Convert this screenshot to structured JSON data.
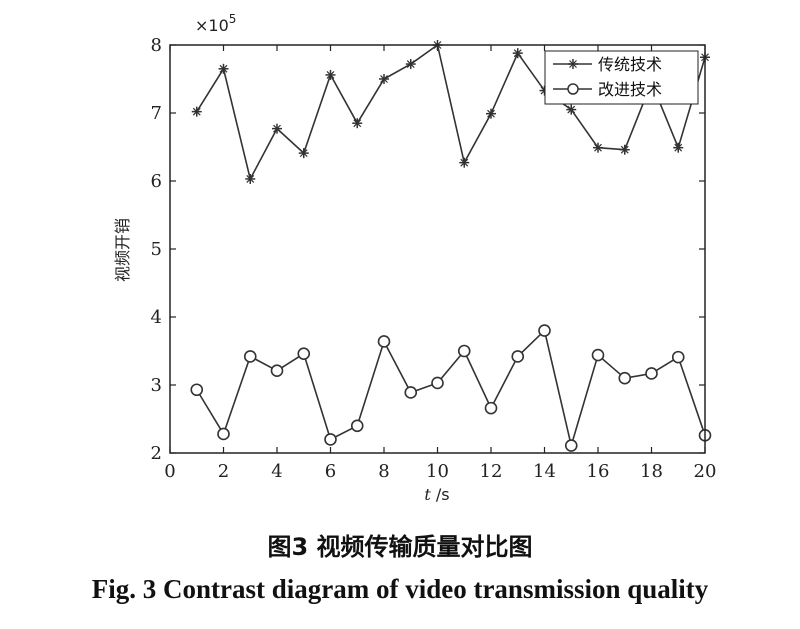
{
  "chart_data": {
    "type": "line",
    "x": [
      1,
      2,
      3,
      4,
      5,
      6,
      7,
      8,
      9,
      10,
      11,
      12,
      13,
      14,
      15,
      16,
      17,
      18,
      19,
      20
    ],
    "series": [
      {
        "name": "传统技术",
        "marker": "star",
        "values": [
          7.02,
          7.65,
          6.03,
          6.77,
          6.41,
          7.56,
          6.85,
          7.5,
          7.72,
          8.0,
          6.27,
          6.99,
          7.88,
          7.33,
          7.05,
          6.49,
          6.46,
          7.45,
          6.49,
          7.82
        ]
      },
      {
        "name": "改进技术",
        "marker": "circle",
        "values": [
          2.93,
          2.28,
          3.42,
          3.21,
          3.46,
          2.2,
          2.4,
          3.64,
          2.89,
          3.03,
          3.5,
          2.66,
          3.42,
          3.8,
          2.11,
          3.44,
          3.1,
          3.17,
          3.41,
          2.26
        ]
      }
    ],
    "xlim": [
      0,
      20
    ],
    "ylim": [
      2,
      8
    ],
    "xticks": [
      "0",
      "2",
      "4",
      "6",
      "8",
      "10",
      "12",
      "14",
      "16",
      "18",
      "20"
    ],
    "yticks": [
      "2",
      "3",
      "4",
      "5",
      "6",
      "7",
      "8"
    ],
    "ylabel": "视频开销",
    "xlabel_italic": "t",
    "xlabel_unit": "/s",
    "exponent_label": "×10",
    "exponent_power": "5",
    "legend_position": "top-right",
    "grid": false,
    "line_color": "#333333"
  },
  "caption": {
    "chinese": "图3  视频传输质量对比图",
    "english": "Fig. 3  Contrast diagram of video transmission quality"
  }
}
